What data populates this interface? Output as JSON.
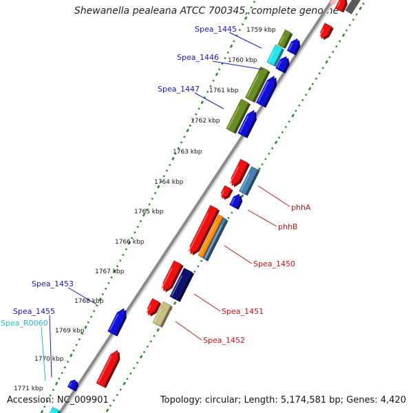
{
  "title": "Shewanella pealeana ATCC 700345, complete genome",
  "accession": "Accession: NC_009901",
  "summary": "Topology: circular; Length: 5,174,581 bp; Genes: 4,420",
  "colors": {
    "backbone": "#8a8a8a",
    "tick": "#2a8a2a",
    "red": "#ee1111",
    "blue": "#1111dd",
    "olive": "#6b8e23",
    "cyan": "#22e5ee",
    "steelblue": "#4682b4",
    "navy": "#101070",
    "orange": "#ff8c00",
    "khaki": "#c8c080",
    "gray": "#707070",
    "label_blue": "#1515c8",
    "label_red": "#cc1111",
    "label_cyan": "#20b8d8"
  },
  "kbp_ticks": [
    "1759 kbp",
    "1760 kbp",
    "1761 kbp",
    "1762 kbp",
    "1763 kbp",
    "1764 kbp",
    "1765 kbp",
    "1766 kbp",
    "1767 kbp",
    "1768 kbp",
    "1769 kbp",
    "1770 kbp",
    "1771 kbp"
  ],
  "gene_labels": [
    {
      "text": "Spea_1445",
      "color": "blue"
    },
    {
      "text": "Spea_1446",
      "color": "blue"
    },
    {
      "text": "Spea_1447",
      "color": "blue"
    },
    {
      "text": "phhA",
      "color": "red"
    },
    {
      "text": "phhB",
      "color": "red"
    },
    {
      "text": "Spea_1450",
      "color": "red"
    },
    {
      "text": "Spea_1451",
      "color": "red"
    },
    {
      "text": "Spea_1452",
      "color": "red"
    },
    {
      "text": "Spea_1453",
      "color": "blue"
    },
    {
      "text": "Spea_1455",
      "color": "blue"
    },
    {
      "text": "Spea_R0060",
      "color": "cyan"
    }
  ]
}
